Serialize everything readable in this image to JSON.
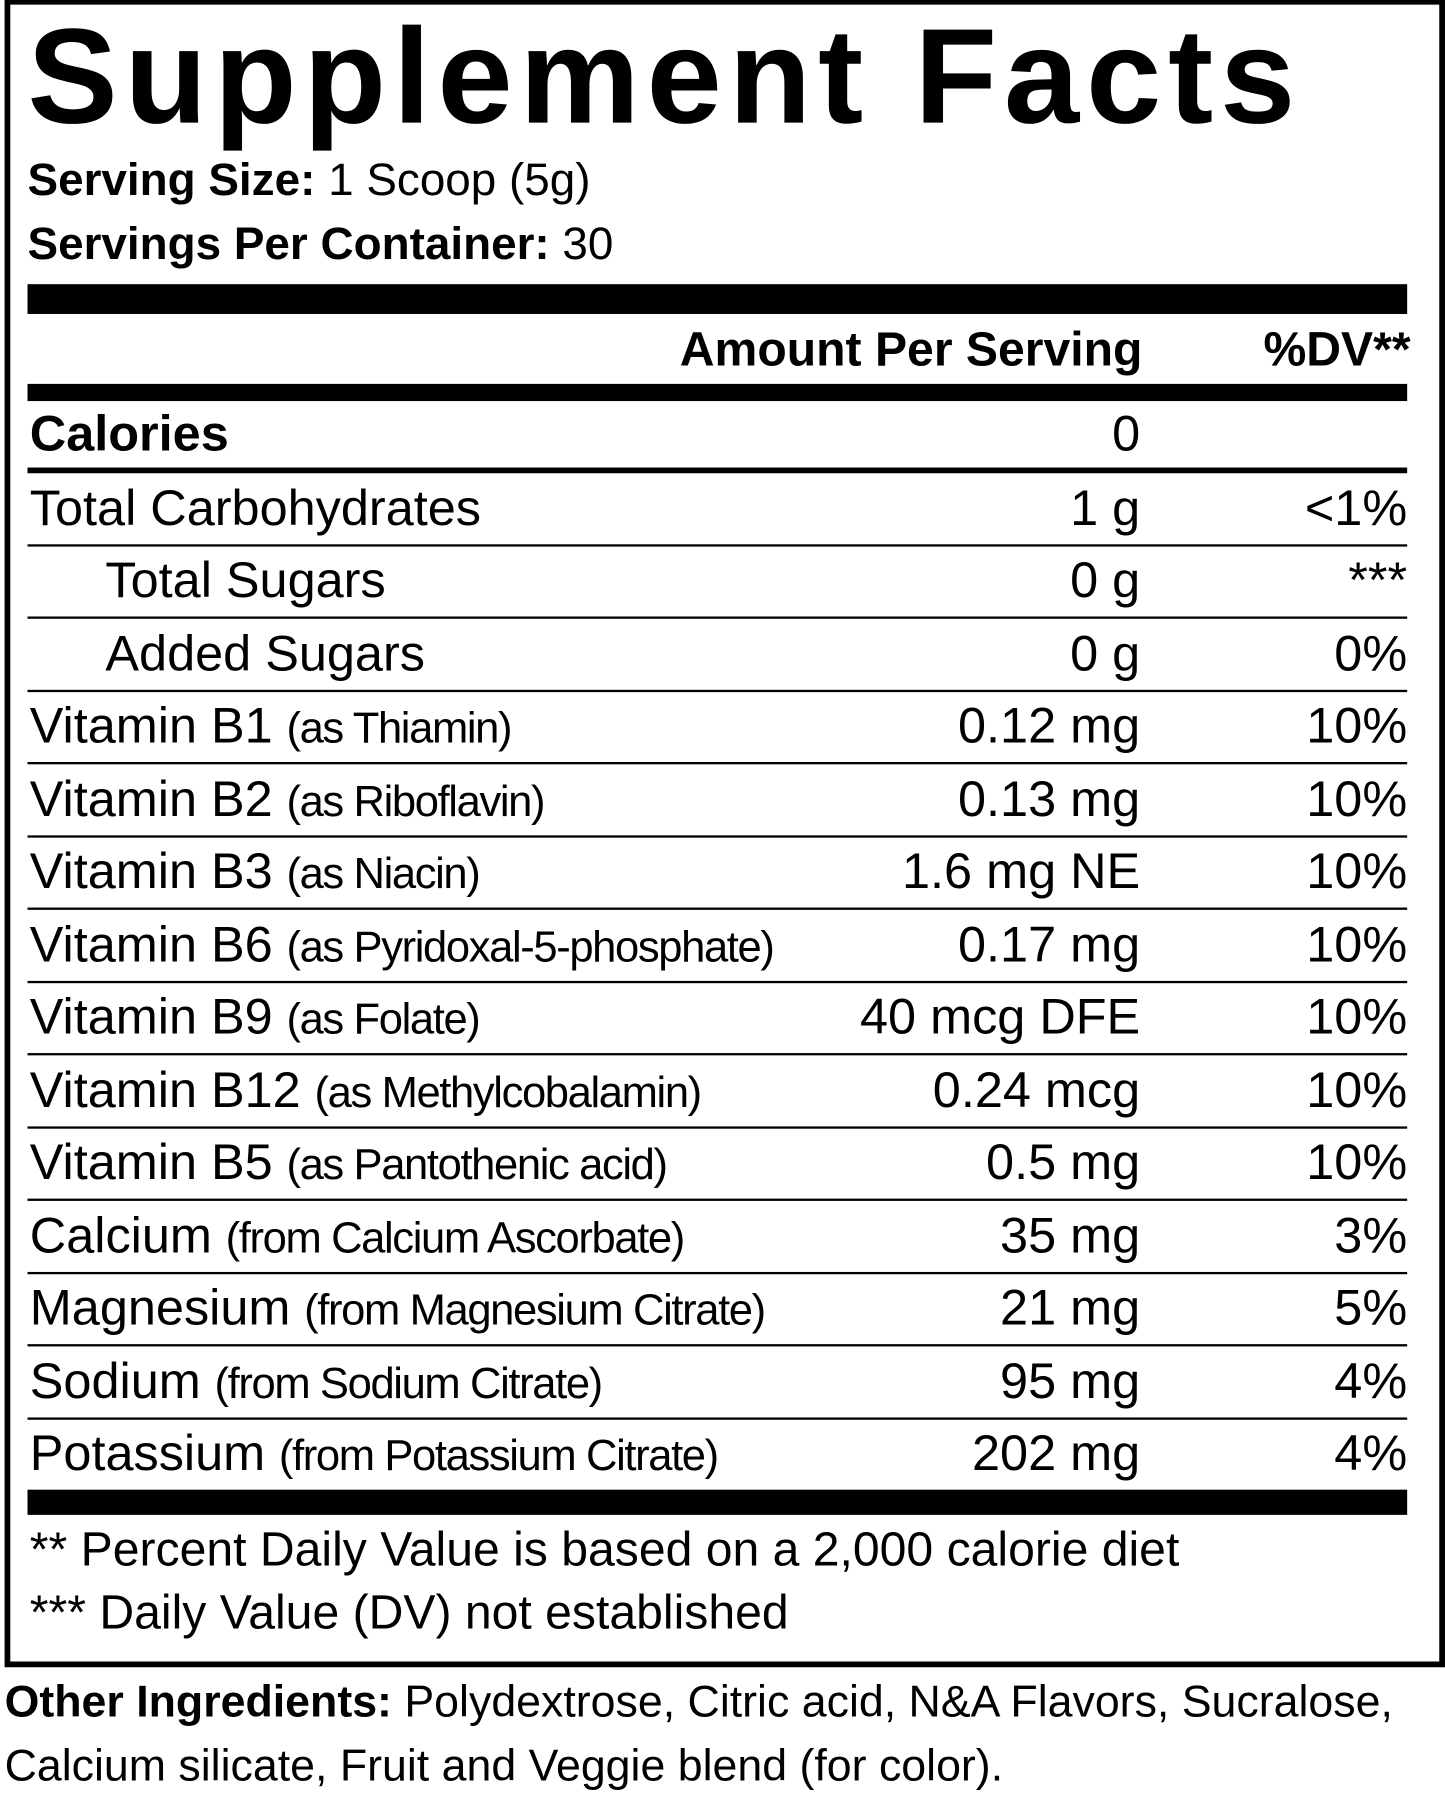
{
  "title": "Supplement Facts",
  "serving_size": {
    "label": "Serving Size:",
    "value": "1 Scoop (5g)"
  },
  "servings_per_container": {
    "label": "Servings Per Container:",
    "value": "30"
  },
  "header": {
    "amount": "Amount Per Serving",
    "dv": "%DV**"
  },
  "rows": [
    {
      "name": "Calories",
      "amount": "0"
    },
    {
      "name": "Total Carbohydrates",
      "amount": "1 g",
      "dv": "<1%"
    },
    {
      "name": "Total Sugars",
      "amount": "0 g",
      "dv": "***"
    },
    {
      "name": "Added Sugars",
      "amount": "0 g",
      "dv": "0%"
    },
    {
      "name": "Vitamin B1",
      "source": "(as Thiamin)",
      "amount": "0.12 mg",
      "dv": "10%"
    },
    {
      "name": "Vitamin B2",
      "source": "(as Riboflavin)",
      "amount": "0.13 mg",
      "dv": "10%"
    },
    {
      "name": "Vitamin B3",
      "source": "(as Niacin)",
      "amount": "1.6 mg NE",
      "dv": "10%"
    },
    {
      "name": "Vitamin B6",
      "source": "(as Pyridoxal-5-phosphate)",
      "amount": "0.17 mg",
      "dv": "10%"
    },
    {
      "name": "Vitamin B9",
      "source": "(as Folate)",
      "amount": "40 mcg DFE",
      "dv": "10%"
    },
    {
      "name": "Vitamin B12",
      "source": "(as Methylcobalamin)",
      "amount": "0.24 mcg",
      "dv": "10%"
    },
    {
      "name": "Vitamin B5",
      "source": "(as Pantothenic acid)",
      "amount": "0.5 mg",
      "dv": "10%"
    },
    {
      "name": "Calcium",
      "source": "(from Calcium Ascorbate)",
      "amount": "35 mg",
      "dv": "3%"
    },
    {
      "name": "Magnesium",
      "source": "(from Magnesium Citrate)",
      "amount": "21 mg",
      "dv": "5%"
    },
    {
      "name": "Sodium",
      "source": "(from Sodium Citrate)",
      "amount": "95 mg",
      "dv": "4%"
    },
    {
      "name": "Potassium",
      "source": "(from Potassium Citrate)",
      "amount": "202 mg",
      "dv": "4%"
    }
  ],
  "footnotes": [
    "** Percent Daily Value is based on a 2,000 calorie diet",
    "*** Daily Value (DV) not established"
  ],
  "other_ingredients": {
    "label": "Other Ingredients:",
    "text": "Polydextrose, Citric acid, N&A Flavors, Sucralose, Calcium silicate, Fruit and Veggie blend (for color)."
  }
}
